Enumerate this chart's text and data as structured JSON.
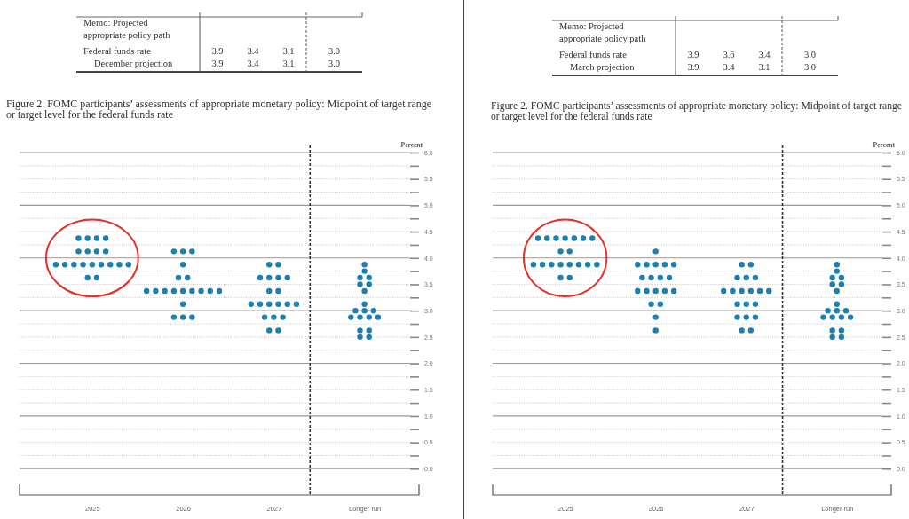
{
  "chart_data": [
    {
      "type": "other",
      "title": "Memo: Projected appropriate policy path",
      "annotations": [
        "Federal funds rate",
        "3.9",
        "3.4",
        "3.1",
        "3.0",
        "December projection",
        "3.9",
        "3.4",
        "3.1",
        "3.0"
      ]
    },
    {
      "type": "scatter",
      "title": "Figure 2. FOMC participants’ assessments of appropriate monetary policy: Midpoint of target range or target level for the federal funds rate",
      "ylabel": "Percent",
      "series": [
        {
          "color": "#1b7fb3",
          "x": [
            2024.85,
            2024.95,
            2025.05,
            2025.15,
            2024.85,
            2024.95,
            2025.05,
            2025.15,
            2024.6,
            2024.7,
            2024.8,
            2024.9,
            2025,
            2025.1,
            2025.2,
            2025.3,
            2025.4,
            2024.95,
            2025.05,
            2025.9,
            2026,
            2026.1,
            2026,
            2025.95,
            2026.05,
            2025.6,
            2025.7,
            2025.8,
            2025.9,
            2026,
            2026.1,
            2026.2,
            2026.3,
            2026.4,
            2026,
            2025.9,
            2026,
            2026.1,
            2026.95,
            2027.05,
            2026.85,
            2026.95,
            2027.05,
            2027.15,
            2026.95,
            2027.05,
            2026.75,
            2026.85,
            2026.95,
            2027.05,
            2027.15,
            2027.25,
            2026.9,
            2027,
            2027.1,
            2026.95,
            2027.05,
            2028,
            2028,
            2027.95,
            2028.05,
            2027.95,
            2028.05,
            2028,
            2028,
            2027.9,
            2028,
            2028.1,
            2027.85,
            2027.95,
            2028.05,
            2028.15,
            2027.95,
            2028.05,
            2027.95,
            2028.05
          ],
          "values": [
            4.375,
            4.375,
            4.375,
            4.375,
            4.125,
            4.125,
            4.125,
            4.125,
            3.875,
            3.875,
            3.875,
            3.875,
            3.875,
            3.875,
            3.875,
            3.875,
            3.875,
            3.625,
            3.625,
            4.125,
            4.125,
            4.125,
            3.875,
            3.625,
            3.625,
            3.375,
            3.375,
            3.375,
            3.375,
            3.375,
            3.375,
            3.375,
            3.375,
            3.375,
            3.125,
            2.875,
            2.875,
            2.875,
            3.875,
            3.875,
            3.625,
            3.625,
            3.625,
            3.625,
            3.375,
            3.375,
            3.125,
            3.125,
            3.125,
            3.125,
            3.125,
            3.125,
            2.875,
            2.875,
            2.875,
            2.625,
            2.625,
            3.875,
            3.75,
            3.625,
            3.625,
            3.5,
            3.5,
            3.375,
            3.125,
            3,
            3,
            3,
            2.875,
            2.875,
            2.875,
            2.875,
            2.625,
            2.625,
            2.5,
            2.5
          ]
        }
      ],
      "xlim": [
        2024.2,
        2028.6
      ],
      "xticks": [
        2025,
        2026,
        2027,
        {
          "value": 2028,
          "label": "Longer run"
        }
      ],
      "ylim": [
        -0.5,
        6
      ],
      "yticks": [
        {
          "value": 0,
          "label": "0.0"
        },
        {
          "value": 0.25,
          "label": null
        },
        0.5,
        {
          "value": 0.75,
          "label": null
        },
        {
          "value": 1,
          "label": "1.0"
        },
        {
          "value": 1.25,
          "label": null
        },
        1.5,
        {
          "value": 1.75,
          "label": null
        },
        {
          "value": 2,
          "label": "2.0"
        },
        {
          "value": 2.25,
          "label": null
        },
        2.5,
        {
          "value": 2.75,
          "label": null
        },
        {
          "value": 3,
          "label": "3.0"
        },
        {
          "value": 3.25,
          "label": null
        },
        3.5,
        {
          "value": 3.75,
          "label": null
        },
        {
          "value": 4,
          "label": "4.0"
        },
        {
          "value": 4.25,
          "label": null
        },
        4.5,
        {
          "value": 4.75,
          "label": null
        },
        {
          "value": 5,
          "label": "5.0"
        },
        {
          "value": 5.25,
          "label": null
        },
        5.5,
        {
          "value": 5.75,
          "label": null
        },
        {
          "value": 6,
          "label": "6.0"
        }
      ],
      "grid": "y",
      "marker": "circle",
      "ref_lines": [
        {
          "axis": "x",
          "value": 2027.4,
          "color": "#333333",
          "line_style": "dashed"
        }
      ]
    },
    {
      "type": "other",
      "title": "Memo: Projected appropriate policy path",
      "annotations": [
        "Federal funds rate",
        "3.9",
        "3.6",
        "3.4",
        "3.0",
        "March projection",
        "3.9",
        "3.4",
        "3.1",
        "3.0"
      ]
    },
    {
      "type": "scatter",
      "title": "Figure 2. FOMC participants’ assessments of appropriate monetary policy: Midpoint of target range or target level for the federal funds rate",
      "ylabel": "Percent",
      "series": [
        {
          "color": "#1b7fb3",
          "x": [
            2024.7,
            2024.8,
            2024.9,
            2025,
            2025.1,
            2025.2,
            2025.3,
            2024.95,
            2025.05,
            2024.65,
            2024.75,
            2024.85,
            2024.95,
            2025.05,
            2025.15,
            2025.25,
            2025.35,
            2024.95,
            2025.05,
            2026,
            2025.8,
            2025.9,
            2026,
            2026.1,
            2026.2,
            2025.85,
            2025.95,
            2026.05,
            2026.15,
            2025.8,
            2025.9,
            2026,
            2026.1,
            2026.2,
            2025.95,
            2026.05,
            2026,
            2026,
            2026.95,
            2027.05,
            2026.9,
            2027,
            2027.1,
            2026.75,
            2026.85,
            2026.95,
            2027.05,
            2027.15,
            2027.25,
            2026.9,
            2027,
            2027.1,
            2026.9,
            2027,
            2027.1,
            2026.95,
            2027.05,
            2028,
            2028,
            2027.95,
            2028.05,
            2027.95,
            2028.05,
            2028,
            2028,
            2027.9,
            2028,
            2028.1,
            2027.85,
            2027.95,
            2028.05,
            2028.15,
            2027.95,
            2028.05,
            2027.95,
            2028.05
          ],
          "values": [
            4.375,
            4.375,
            4.375,
            4.375,
            4.375,
            4.375,
            4.375,
            4.125,
            4.125,
            3.875,
            3.875,
            3.875,
            3.875,
            3.875,
            3.875,
            3.875,
            3.875,
            3.625,
            3.625,
            4.125,
            3.875,
            3.875,
            3.875,
            3.875,
            3.875,
            3.625,
            3.625,
            3.625,
            3.625,
            3.375,
            3.375,
            3.375,
            3.375,
            3.375,
            3.125,
            3.125,
            2.875,
            2.625,
            3.875,
            3.875,
            3.625,
            3.625,
            3.625,
            3.375,
            3.375,
            3.375,
            3.375,
            3.375,
            3.375,
            3.125,
            3.125,
            3.125,
            2.875,
            2.875,
            2.875,
            2.625,
            2.625,
            3.875,
            3.75,
            3.625,
            3.625,
            3.5,
            3.5,
            3.375,
            3.125,
            3,
            3,
            3,
            2.875,
            2.875,
            2.875,
            2.875,
            2.625,
            2.625,
            2.5,
            2.5
          ]
        }
      ],
      "xlim": [
        2024.2,
        2028.6
      ],
      "xticks": [
        2025,
        2026,
        2027,
        {
          "value": 2028,
          "label": "Longer run"
        }
      ],
      "ylim": [
        -0.5,
        6
      ],
      "yticks": [
        {
          "value": 0,
          "label": "0.0"
        },
        {
          "value": 0.25,
          "label": null
        },
        0.5,
        {
          "value": 0.75,
          "label": null
        },
        {
          "value": 1,
          "label": "1.0"
        },
        {
          "value": 1.25,
          "label": null
        },
        1.5,
        {
          "value": 1.75,
          "label": null
        },
        {
          "value": 2,
          "label": "2.0"
        },
        {
          "value": 2.25,
          "label": null
        },
        2.5,
        {
          "value": 2.75,
          "label": null
        },
        {
          "value": 3,
          "label": "3.0"
        },
        {
          "value": 3.25,
          "label": null
        },
        3.5,
        {
          "value": 3.75,
          "label": null
        },
        {
          "value": 4,
          "label": "4.0"
        },
        {
          "value": 4.25,
          "label": null
        },
        4.5,
        {
          "value": 4.75,
          "label": null
        },
        {
          "value": 5,
          "label": "5.0"
        },
        {
          "value": 5.25,
          "label": null
        },
        5.5,
        {
          "value": 5.75,
          "label": null
        },
        {
          "value": 6,
          "label": "6.0"
        }
      ],
      "grid": "y",
      "marker": "circle",
      "ref_lines": [
        {
          "axis": "x",
          "value": 2027.4,
          "color": "#333333",
          "line_style": "dashed"
        }
      ]
    }
  ]
}
